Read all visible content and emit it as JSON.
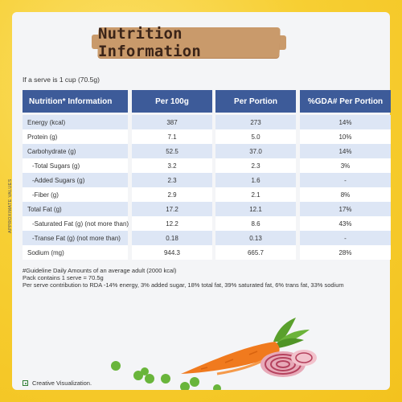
{
  "title": "Nutrition Information",
  "serve_note": "If a serve is 1 cup (70.5g)",
  "side_label": "APPROXIMATE VALUES",
  "headers": [
    "Nutrition* Information",
    "Per 100g",
    "Per Portion",
    "%GDA# Per Portion"
  ],
  "rows": [
    {
      "name": "Energy (kcal)",
      "per100": "387",
      "portion": "273",
      "gda": "14%"
    },
    {
      "name": "Protein (g)",
      "per100": "7.1",
      "portion": "5.0",
      "gda": "10%"
    },
    {
      "name": "Carbohydrate (g)",
      "per100": "52.5",
      "portion": "37.0",
      "gda": "14%"
    },
    {
      "name": "-Total Sugars (g)",
      "per100": "3.2",
      "portion": "2.3",
      "gda": "3%"
    },
    {
      "name": "-Added Sugars (g)",
      "per100": "2.3",
      "portion": "1.6",
      "gda": "-"
    },
    {
      "name": "-Fiber (g)",
      "per100": "2.9",
      "portion": "2.1",
      "gda": "8%"
    },
    {
      "name": "Total Fat (g)",
      "per100": "17.2",
      "portion": "12.1",
      "gda": "17%"
    },
    {
      "name": "-Saturated Fat (g) (not more than)",
      "per100": "12.2",
      "portion": "8.6",
      "gda": "43%"
    },
    {
      "name": "-Transe Fat (g) (not more than)",
      "per100": "0.18",
      "portion": "0.13",
      "gda": "-"
    },
    {
      "name": "Sodium (mg)",
      "per100": "944.3",
      "portion": "665.7",
      "gda": "28%"
    }
  ],
  "footnotes": {
    "line1": "#Guideline Daily Amounts of an average adult (2000 kcal)",
    "line2": "Pack contains 1 serve = 70.5g",
    "line3": "Per serve contribution to RDA -14% energy, 3% added sugar, 18% total fat, 39% saturated fat, 6% trans fat, 33% sodium"
  },
  "disclaimer": "Creative Visualization.",
  "colors": {
    "header_bg": "#3d5b99",
    "row_alt": "#dde6f5",
    "board": "#c99a6b",
    "frame": "#f6d23a"
  }
}
